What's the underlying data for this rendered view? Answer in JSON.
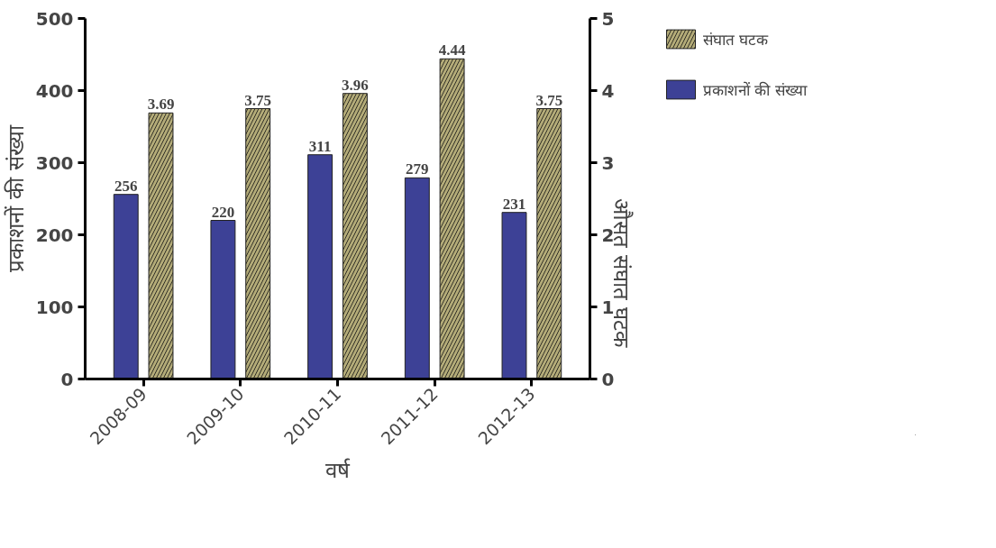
{
  "chart_data": {
    "type": "bar",
    "xlabel": "वर्ष",
    "ylabel": "प्रकाशनों की संख्या",
    "y2label": "औसत संघात घटक",
    "categories": [
      "2008-09",
      "2009-10",
      "2010-11",
      "2011-12",
      "2012-13"
    ],
    "series": [
      {
        "name": "प्रकाशनों की संख्या",
        "color": "#3d4196",
        "values": [
          256,
          220,
          311,
          279,
          231
        ]
      },
      {
        "name": "संघात घटक",
        "color": "#b3ab78",
        "values": [
          3.69,
          3.75,
          3.96,
          4.44,
          3.75
        ],
        "axis": "y2"
      }
    ],
    "ylim": [
      0,
      500
    ],
    "yticks": [
      0,
      100,
      200,
      300,
      400,
      500
    ],
    "y2lim": [
      0,
      5
    ],
    "y2ticks": [
      0,
      1,
      2,
      3,
      4,
      5
    ],
    "data_labels": true,
    "legend": "right",
    "grid": false
  }
}
